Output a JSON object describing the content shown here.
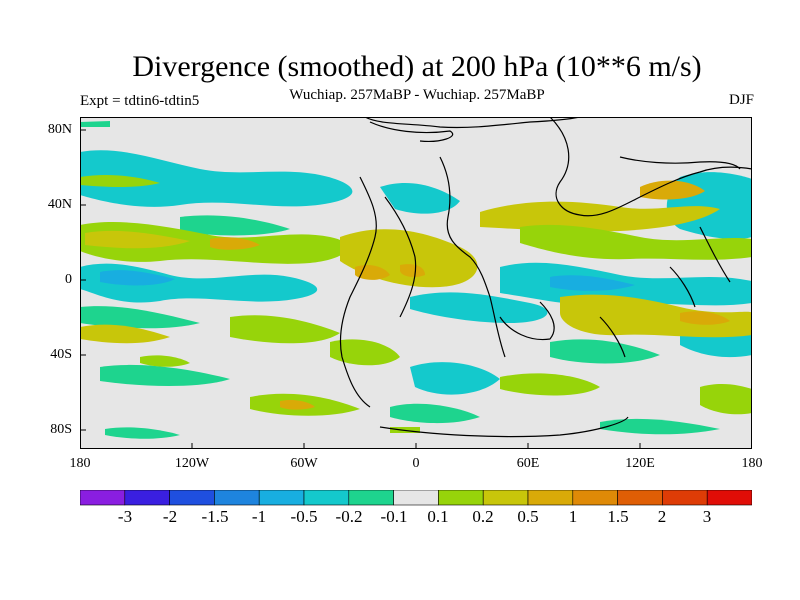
{
  "title": "Divergence (smoothed) at 200 hPa (10**6 m/s)",
  "subtitle": "Wuchiap. 257MaBP - Wuchiap. 257MaBP",
  "left_label": "Expt = tdtin6-tdtin5",
  "season": "DJF",
  "lat_labels": [
    "80N",
    "40N",
    "0",
    "40S",
    "80S"
  ],
  "lon_labels": [
    "180",
    "120W",
    "60W",
    "0",
    "60E",
    "120E",
    "180"
  ],
  "colorbar": {
    "labels": [
      "-3",
      "-2",
      "-1.5",
      "-1",
      "-0.5",
      "-0.2",
      "-0.1",
      "0.1",
      "0.2",
      "0.5",
      "1",
      "1.5",
      "2",
      "3"
    ],
    "colors": [
      "#8a1ee0",
      "#3a1fe0",
      "#1f4fdf",
      "#1e84de",
      "#18aee0",
      "#14c9cc",
      "#1ed48e",
      "#e6e6e6",
      "#97d40a",
      "#c8c60a",
      "#d9aa08",
      "#df8a07",
      "#df5e05",
      "#de3c06",
      "#e00d07"
    ]
  },
  "colors": {
    "background": "#e6e6e6",
    "coastline": "#000000"
  }
}
